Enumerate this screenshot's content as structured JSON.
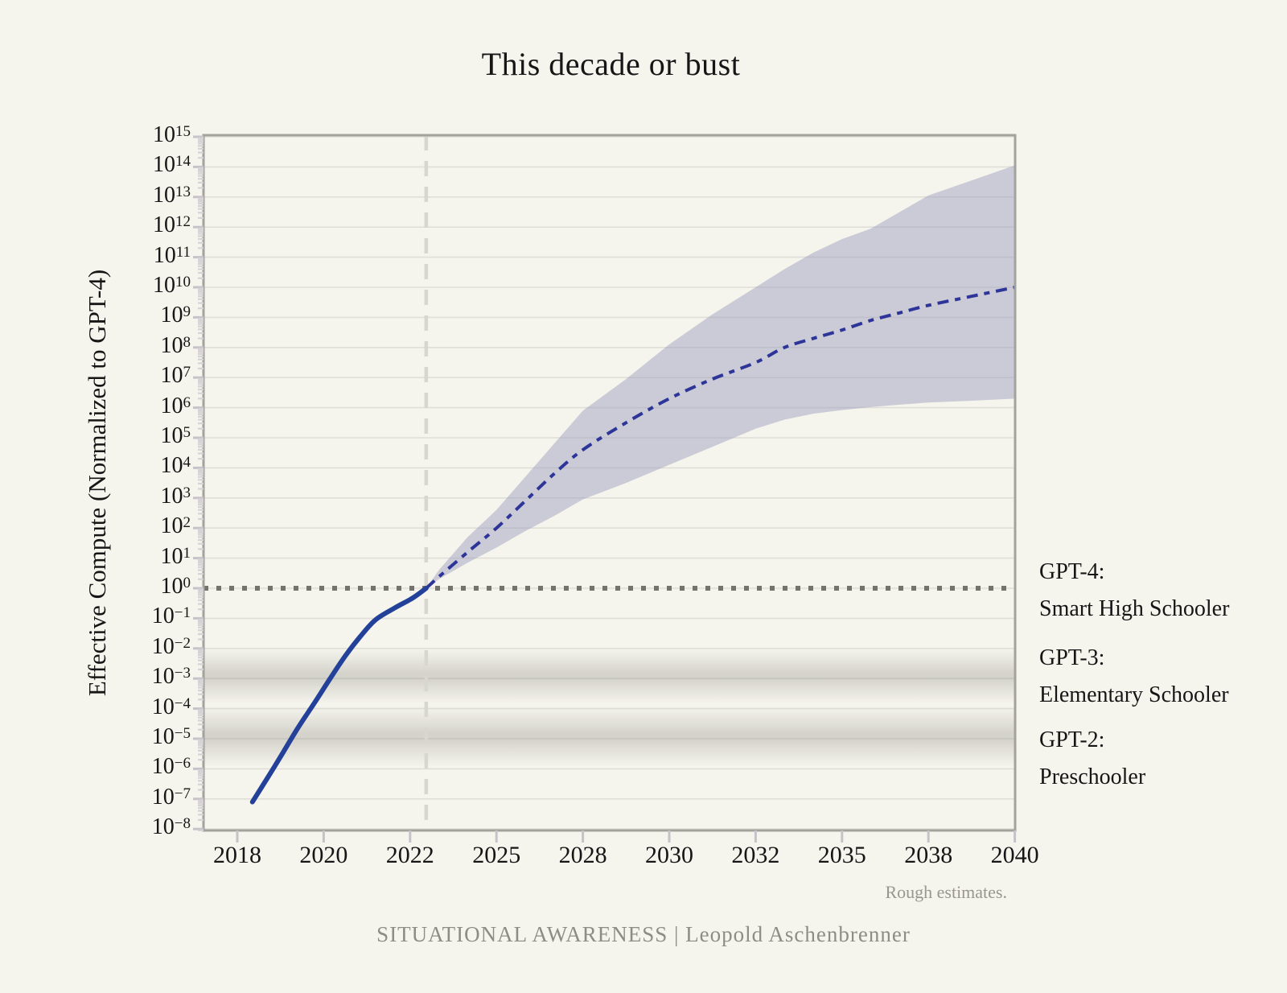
{
  "title": "This decade or bust",
  "note": "Rough estimates.",
  "footer": "SITUATIONAL AWARENESS | Leopold Aschenbrenner",
  "colors": {
    "background": "#f5f4ed",
    "text": "#161616",
    "muted_text": "#8d8d86",
    "note_text": "#98978e",
    "historical_line": "#24419a",
    "projection_line": "#2e3598",
    "uncertainty_band": "rgba(150,154,190,0.46)",
    "grid": "#dfded7",
    "spine": "#a3a29c",
    "tick": "#c6c3c8",
    "minor_tick": "#d6d3d7",
    "dotted_reference": "#73726c",
    "dashed_reference": "#d7d6cf",
    "stripe": "#7f7d75"
  },
  "chart_data": {
    "type": "line",
    "title": "This decade or bust",
    "xlabel": "",
    "ylabel": "Effective Compute (Normalized to GPT-4)",
    "note": "Rough estimates.",
    "x_axis": {
      "tick_years": [
        2018,
        2020,
        2022,
        2025,
        2028,
        2030,
        2032,
        2035,
        2038,
        2040
      ],
      "ticks_equally_spaced": true
    },
    "y_axis": {
      "scale": "log10",
      "base_label": "10",
      "tick_exponents": [
        15,
        14,
        13,
        12,
        11,
        10,
        9,
        8,
        7,
        6,
        5,
        4,
        3,
        2,
        1,
        0,
        -1,
        -2,
        -3,
        -4,
        -5,
        -6,
        -7,
        -8
      ],
      "ylim_exponents": [
        -8.06,
        15.06
      ],
      "grid": true
    },
    "series": [
      {
        "name": "Historical effective compute",
        "style": "solid",
        "color_key": "historical_line",
        "points": [
          [
            2018.35,
            -7.1
          ],
          [
            2018.7,
            -6.3
          ],
          [
            2019.0,
            -5.6
          ],
          [
            2019.4,
            -4.65
          ],
          [
            2019.8,
            -3.78
          ],
          [
            2020.15,
            -3.0
          ],
          [
            2020.5,
            -2.25
          ],
          [
            2020.85,
            -1.6
          ],
          [
            2021.2,
            -1.05
          ],
          [
            2021.65,
            -0.65
          ],
          [
            2022.1,
            -0.32
          ],
          [
            2022.56,
            0.0
          ]
        ]
      },
      {
        "name": "Projected effective compute (central estimate)",
        "style": "dash-dot",
        "color_key": "projection_line",
        "points": [
          [
            2022.56,
            0.0
          ],
          [
            2023,
            0.38
          ],
          [
            2024,
            1.2
          ],
          [
            2025,
            2.0
          ],
          [
            2026,
            2.9
          ],
          [
            2027,
            3.8
          ],
          [
            2028,
            4.6
          ],
          [
            2029,
            5.5
          ],
          [
            2030,
            6.3
          ],
          [
            2031,
            6.95
          ],
          [
            2032,
            7.5
          ],
          [
            2033,
            8.0
          ],
          [
            2034,
            8.3
          ],
          [
            2035,
            8.58
          ],
          [
            2036,
            8.9
          ],
          [
            2037,
            9.15
          ],
          [
            2038,
            9.4
          ],
          [
            2039,
            9.7
          ],
          [
            2040,
            10.0
          ]
        ]
      }
    ],
    "uncertainty_band": {
      "top_points": [
        [
          2022.56,
          0.0
        ],
        [
          2023,
          0.6
        ],
        [
          2024,
          1.7
        ],
        [
          2025,
          2.6
        ],
        [
          2026,
          3.7
        ],
        [
          2027,
          4.8
        ],
        [
          2028,
          5.9
        ],
        [
          2029,
          6.95
        ],
        [
          2030,
          8.1
        ],
        [
          2031,
          9.1
        ],
        [
          2032,
          10.0
        ],
        [
          2033,
          10.6
        ],
        [
          2034,
          11.15
        ],
        [
          2035,
          11.6
        ],
        [
          2036,
          11.95
        ],
        [
          2037,
          12.5
        ],
        [
          2038,
          13.05
        ],
        [
          2039,
          13.55
        ],
        [
          2040,
          14.05
        ]
      ],
      "bottom_points": [
        [
          2022.56,
          0.0
        ],
        [
          2023,
          0.3
        ],
        [
          2024,
          0.85
        ],
        [
          2025,
          1.35
        ],
        [
          2026,
          1.9
        ],
        [
          2027,
          2.4
        ],
        [
          2028,
          2.95
        ],
        [
          2029,
          3.5
        ],
        [
          2030,
          4.1
        ],
        [
          2031,
          4.7
        ],
        [
          2032,
          5.3
        ],
        [
          2033,
          5.6
        ],
        [
          2034,
          5.8
        ],
        [
          2035,
          5.92
        ],
        [
          2036,
          6.02
        ],
        [
          2037,
          6.1
        ],
        [
          2038,
          6.17
        ],
        [
          2039,
          6.23
        ],
        [
          2040,
          6.3
        ]
      ]
    },
    "reference_lines": [
      {
        "name": "GPT-4 level",
        "orientation": "horizontal",
        "log10_value": 0,
        "style": "dotted"
      },
      {
        "name": "present day",
        "orientation": "vertical",
        "year": 2022.56,
        "style": "dashed"
      }
    ],
    "model_stripes": [
      {
        "label": "GPT-3",
        "log10_range": [
          -2.0,
          -3.85
        ]
      },
      {
        "label": "GPT-2",
        "log10_range": [
          -3.9,
          -5.95
        ]
      }
    ],
    "annotations": [
      {
        "lines": [
          "GPT-4:",
          "Smart High Schooler"
        ]
      },
      {
        "lines": [
          "GPT-3:",
          "Elementary Schooler"
        ]
      },
      {
        "lines": [
          "GPT-2:",
          "Preschooler"
        ]
      }
    ]
  }
}
